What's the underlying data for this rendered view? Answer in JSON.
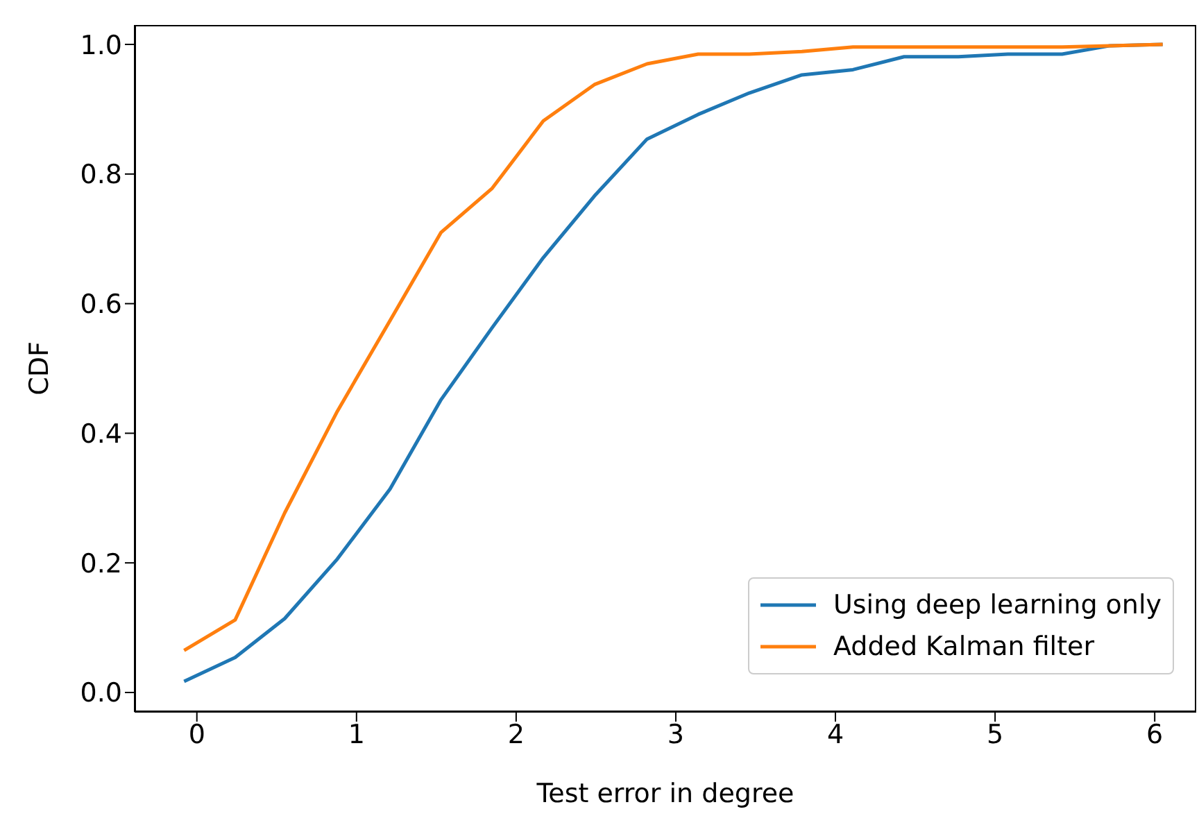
{
  "chart_data": {
    "type": "line",
    "xlabel": "Test error in degree",
    "ylabel": "CDF",
    "x": [
      -0.08,
      0.24,
      0.55,
      0.88,
      1.21,
      1.53,
      1.85,
      2.17,
      2.49,
      2.82,
      3.14,
      3.46,
      3.79,
      4.11,
      4.43,
      4.77,
      5.08,
      5.42,
      5.72,
      6.05
    ],
    "series": [
      {
        "name": "Using deep learning only",
        "color": "#1f77b4",
        "values": [
          0.017,
          0.054,
          0.114,
          0.206,
          0.314,
          0.452,
          0.563,
          0.671,
          0.766,
          0.854,
          0.892,
          0.925,
          0.953,
          0.961,
          0.981,
          0.981,
          0.985,
          0.985,
          0.998,
          1.0
        ]
      },
      {
        "name": "Added Kalman filter",
        "color": "#ff7f0e",
        "values": [
          0.065,
          0.112,
          0.277,
          0.434,
          0.574,
          0.71,
          0.778,
          0.882,
          0.938,
          0.97,
          0.985,
          0.985,
          0.989,
          0.996,
          0.996,
          0.996,
          0.996,
          0.996,
          0.998,
          1.0
        ]
      }
    ],
    "xlim": [
      -0.39,
      6.26
    ],
    "xticks": [
      0,
      1,
      2,
      3,
      4,
      5,
      6
    ],
    "ylim": [
      -0.03,
      1.03
    ],
    "yticks": [
      {
        "value": 0,
        "label": "0.0"
      },
      {
        "value": 0.2,
        "label": "0.2"
      },
      {
        "value": 0.4,
        "label": "0.4"
      },
      {
        "value": 0.6,
        "label": "0.6"
      },
      {
        "value": 0.8,
        "label": "0.8"
      },
      {
        "value": 1,
        "label": "1.0"
      }
    ],
    "grid": false,
    "legend": "bottom right",
    "marker": "none",
    "line_style": "solid"
  }
}
